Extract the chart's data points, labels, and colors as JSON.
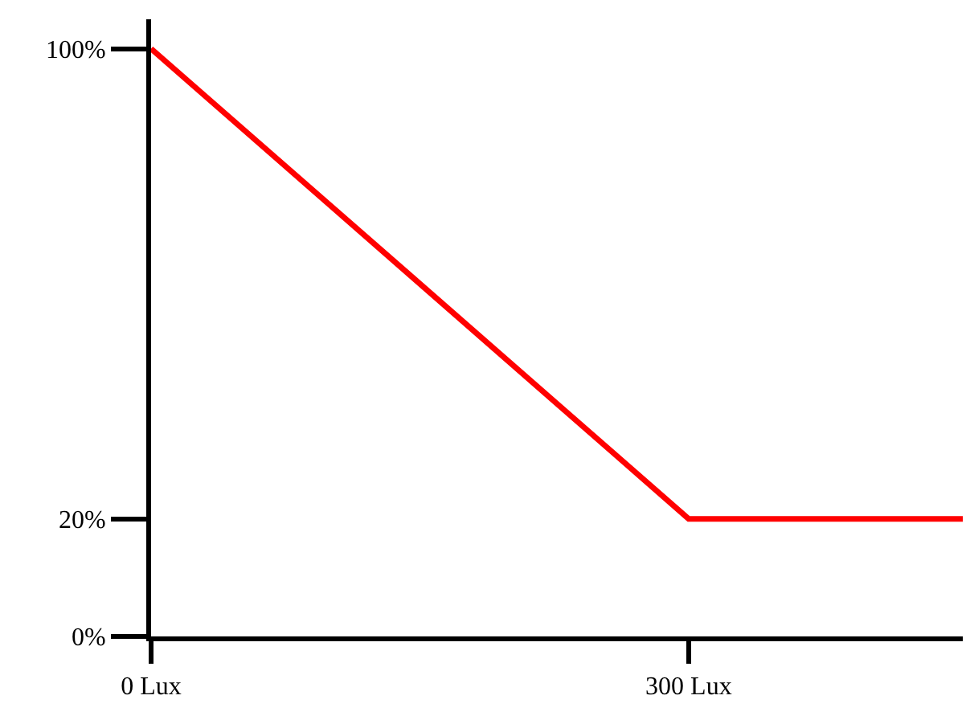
{
  "chart_data": {
    "type": "line",
    "x": [
      0,
      300,
      453
    ],
    "series": [
      {
        "color": "#ff0000",
        "values": [
          100,
          20,
          20
        ]
      }
    ],
    "xlim": [
      0,
      453
    ],
    "ylim": [
      0,
      105
    ],
    "xticks": [
      {
        "value": 0,
        "label": "0 Lux"
      },
      {
        "value": 300,
        "label": "300 Lux"
      }
    ],
    "yticks": [
      {
        "value": 0,
        "label": "0%"
      },
      {
        "value": 20,
        "label": "20%"
      },
      {
        "value": 100,
        "label": "100%"
      }
    ],
    "grid": false,
    "legend": false,
    "marker": "none",
    "line_style": "solid"
  }
}
